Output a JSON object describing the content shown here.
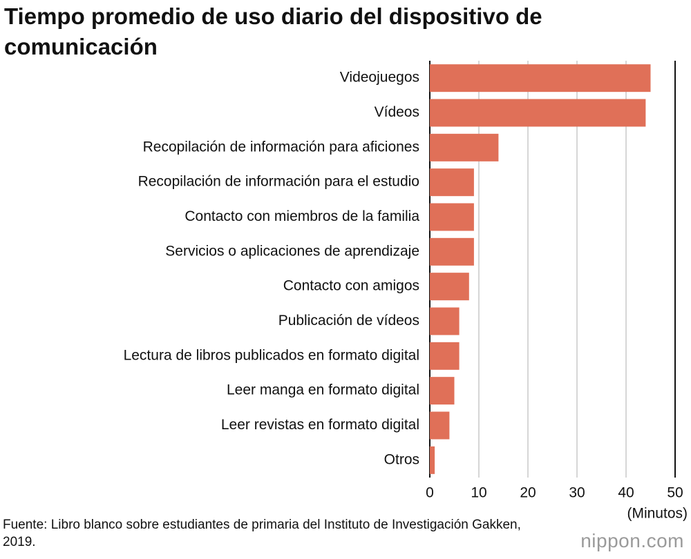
{
  "chart_data": {
    "type": "bar",
    "orientation": "horizontal",
    "title": "Tiempo promedio de uso diario del dispositivo de comunicación",
    "categories": [
      "Videojuegos",
      "Vídeos",
      "Recopilación de información para aficiones",
      "Recopilación de información para el estudio",
      "Contacto con miembros de la familia",
      "Servicios o aplicaciones de aprendizaje",
      "Contacto con amigos",
      "Publicación de vídeos",
      "Lectura de libros publicados en formato digital",
      "Leer manga en formato digital",
      "Leer revistas en formato digital",
      "Otros"
    ],
    "values": [
      45,
      44,
      14,
      9,
      9,
      9,
      8,
      6,
      6,
      5,
      4,
      1
    ],
    "color": "#e07058",
    "xlim": [
      0,
      50
    ],
    "xticks": [
      0,
      10,
      20,
      30,
      40,
      50
    ],
    "x_label": "(Minutos)",
    "grid": true,
    "source": "Fuente: Libro blanco sobre estudiantes de primaria del Instituto de Investigación Gakken, 2019.",
    "logo": "nippon.com"
  }
}
